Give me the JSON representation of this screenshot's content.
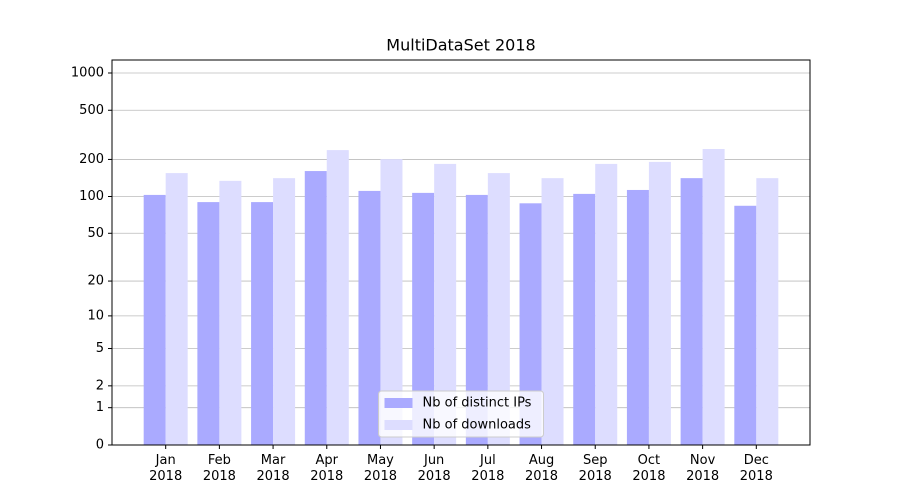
{
  "chart_data": {
    "type": "bar",
    "title": "MultiDataSet 2018",
    "categories": [
      "Jan\n2018",
      "Feb\n2018",
      "Mar\n2018",
      "Apr\n2018",
      "May\n2018",
      "Jun\n2018",
      "Jul\n2018",
      "Aug\n2018",
      "Sep\n2018",
      "Oct\n2018",
      "Nov\n2018",
      "Dec\n2018"
    ],
    "series": [
      {
        "name": "Nb of distinct IPs",
        "color": "#aaaaff",
        "values": [
          103,
          90,
          90,
          161,
          111,
          107,
          103,
          88,
          105,
          113,
          141,
          84
        ]
      },
      {
        "name": "Nb of downloads",
        "color": "#ddddff",
        "values": [
          155,
          134,
          141,
          238,
          201,
          184,
          155,
          141,
          184,
          191,
          243,
          141
        ]
      }
    ],
    "yscale": "log1p",
    "ylim": [
      0,
      1273
    ],
    "yticks": [
      0,
      1,
      2,
      5,
      10,
      20,
      50,
      100,
      200,
      500,
      1000
    ],
    "grid": true,
    "legend": "lower center"
  }
}
